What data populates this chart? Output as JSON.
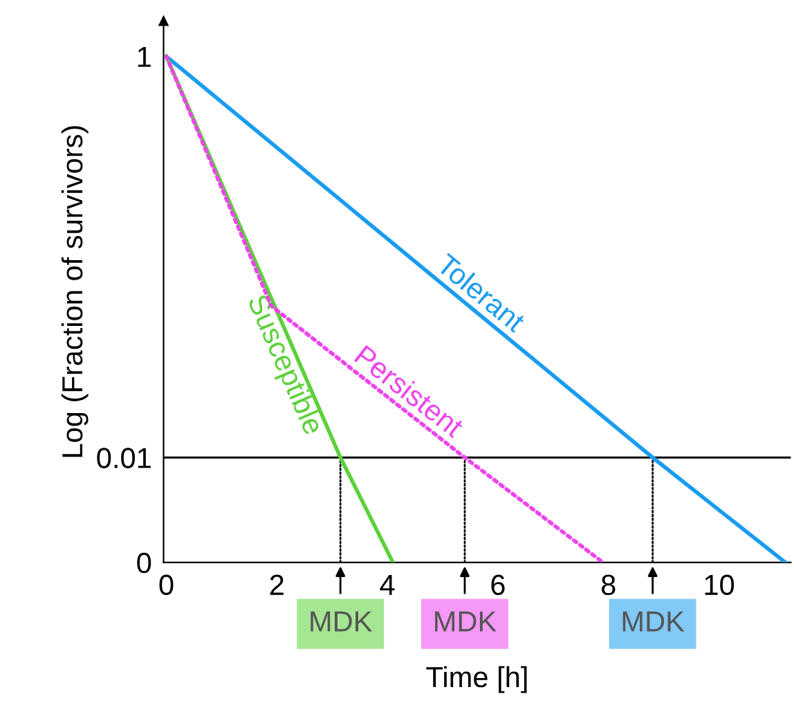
{
  "chart_data": {
    "type": "line",
    "xlabel": "Time [h]",
    "ylabel": "Log (Fraction of survivors)",
    "log": "y",
    "xlim": [
      -0.05,
      11.3
    ],
    "ylim": [
      0.003,
      1.5
    ],
    "xticks": [
      0,
      2,
      4,
      6,
      8,
      10
    ],
    "yticks": [
      {
        "value": 0.003,
        "label": "0"
      },
      {
        "value": 0.01,
        "label": "0.01"
      },
      1
    ],
    "grid": false,
    "legend": false,
    "marker": "none",
    "series": [
      {
        "name": "Tolerant",
        "color": "#1a9cf0",
        "x": [
          0,
          8.8,
          11.2
        ],
        "values": [
          1,
          0.01,
          0.003
        ],
        "line_style": "solid"
      },
      {
        "name": "Persistent",
        "color": "#ee44ee",
        "x": [
          0,
          1.9,
          5.4,
          7.9
        ],
        "values": [
          1,
          0.057,
          0.01,
          0.003
        ],
        "line_style": "dotted"
      },
      {
        "name": "Susceptible",
        "color": "#5cd13a",
        "x": [
          0,
          3.15,
          4.1
        ],
        "values": [
          1,
          0.01,
          0.003
        ],
        "line_style": "solid"
      },
      {
        "color": "#000000",
        "x": [
          3.15,
          3.15
        ],
        "values": [
          0.003,
          0.01
        ],
        "line_style": "dotted"
      },
      {
        "color": "#000000",
        "x": [
          5.4,
          5.4
        ],
        "values": [
          0.003,
          0.01
        ],
        "line_style": "dotted"
      },
      {
        "color": "#000000",
        "x": [
          8.8,
          8.8
        ],
        "values": [
          0.003,
          0.01
        ],
        "line_style": "dotted"
      }
    ],
    "ref_lines": [
      {
        "axis": "y",
        "value": 0.01,
        "color": "#000000"
      }
    ],
    "annotations": [
      {
        "text": "MDK",
        "x": 3.15,
        "y": 0.003
      },
      {
        "text": "MDK",
        "x": 5.4,
        "y": 0.003
      },
      {
        "text": "MDK",
        "x": 8.8,
        "y": 0.003
      }
    ]
  }
}
